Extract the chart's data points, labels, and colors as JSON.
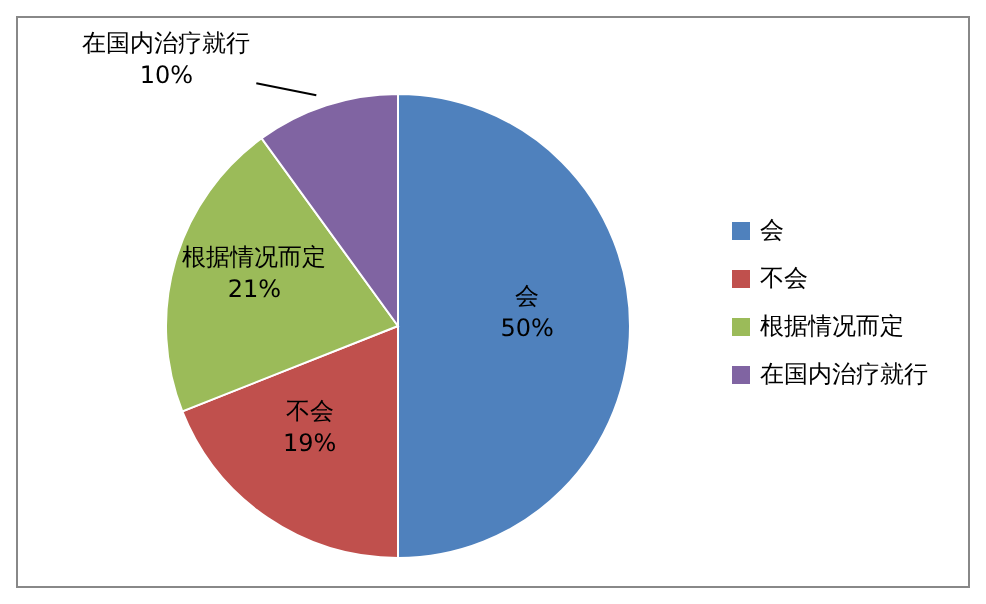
{
  "chart_data": {
    "type": "pie",
    "categories": [
      "会",
      "不会",
      "根据情况而定",
      "在国内治疗就行"
    ],
    "values": [
      50,
      19,
      21,
      10
    ],
    "colors": [
      "#4f81bd",
      "#c0504d",
      "#9bbb59",
      "#8064a2"
    ],
    "value_labels": [
      "50%",
      "19%",
      "21%",
      "10%"
    ],
    "legend": "right"
  }
}
